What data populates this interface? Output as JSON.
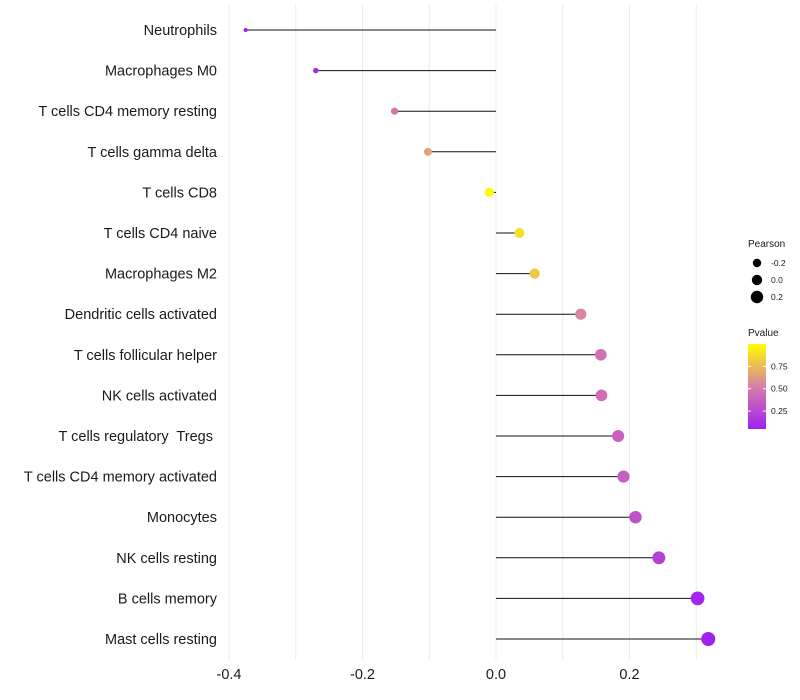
{
  "chart_data": {
    "type": "lollipop",
    "title": "",
    "xlabel": "",
    "ylabel": "",
    "xlim": [
      -0.4,
      0.3
    ],
    "xticks": [
      -0.4,
      -0.2,
      0.0,
      0.2
    ],
    "xtick_labels": [
      "-0.4",
      "-0.2",
      "0.0",
      "0.2"
    ],
    "categories": [
      "Neutrophils",
      "Macrophages M0",
      "T cells CD4 memory resting",
      "T cells gamma delta",
      "T cells CD8",
      "T cells CD4 naive",
      "Macrophages M2",
      "Dendritic cells activated",
      "T cells follicular helper",
      "NK cells activated",
      "T cells regulatory  Tregs ",
      "T cells CD4 memory activated",
      "Monocytes",
      "NK cells resting",
      "B cells memory",
      "Mast cells resting"
    ],
    "pearson": [
      -0.375,
      -0.27,
      -0.152,
      -0.102,
      -0.01,
      0.035,
      0.058,
      0.127,
      0.157,
      0.158,
      0.183,
      0.191,
      0.209,
      0.244,
      0.302,
      0.318
    ],
    "pvalue": [
      0.05,
      0.12,
      0.48,
      0.65,
      0.98,
      0.88,
      0.8,
      0.55,
      0.46,
      0.45,
      0.38,
      0.36,
      0.3,
      0.22,
      0.08,
      0.05
    ],
    "size_legend": {
      "title": "Pearson",
      "values": [
        -0.2,
        0.0,
        0.2
      ],
      "labels": [
        "-0.2",
        "0.0",
        "0.2"
      ]
    },
    "color_legend": {
      "title": "Pvalue",
      "range": [
        0.05,
        1.0
      ],
      "ticks": [
        0.25,
        0.5,
        0.75
      ],
      "tick_labels": [
        "0.25",
        "0.50",
        "0.75"
      ],
      "low_color": "#a020f0",
      "high_color": "#ffff00"
    },
    "grid": true,
    "legend_position": "right"
  }
}
